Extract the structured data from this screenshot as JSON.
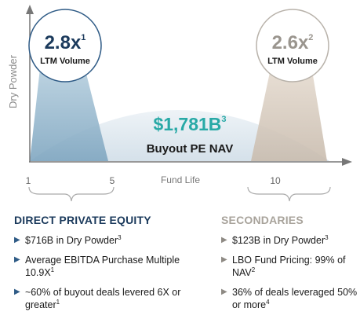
{
  "axis": {
    "y_label": "Dry Powder",
    "x_label": "Fund Life",
    "ticks": [
      "1",
      "5",
      "10"
    ]
  },
  "left_circle": {
    "value": "2.8x",
    "sup": "1",
    "label": "LTM Volume"
  },
  "right_circle": {
    "value": "2.6x",
    "sup": "2",
    "label": "LTM Volume"
  },
  "center": {
    "value": "$1,781B",
    "sup": "3",
    "label": "Buyout PE NAV"
  },
  "direct": {
    "heading": "DIRECT PRIVATE EQUITY",
    "items": [
      {
        "text": "$716B in Dry Powder",
        "sup": "3"
      },
      {
        "text": "Average EBITDA Purchase Multiple 10.9X",
        "sup": "1"
      },
      {
        "text": "~60% of buyout deals levered 6X or greater",
        "sup": "1"
      }
    ]
  },
  "secondaries": {
    "heading": "SECONDARIES",
    "items": [
      {
        "text": "$123B in Dry Powder",
        "sup": "3"
      },
      {
        "text": "LBO Fund Pricing: 99% of NAV",
        "sup": "2"
      },
      {
        "text": "36% of deals leveraged 50% or more",
        "sup": "4"
      }
    ]
  },
  "colors": {
    "blue_trap": "#9fbfd3",
    "beige_trap": "#d9cfc3",
    "arc_fill": "#e3ebf1",
    "center_value": "#28a9a6",
    "left_value": "#1b3a5c",
    "right_value": "#9a958e"
  }
}
